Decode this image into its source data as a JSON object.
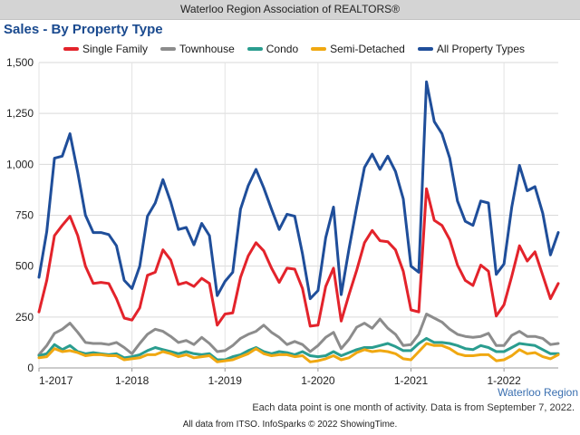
{
  "header": {
    "title": "Waterloo Region Association of REALTORS®"
  },
  "chart_data": {
    "type": "line",
    "title": "Sales - By Property Type",
    "xlabel": "",
    "ylabel": "",
    "region_label": "Waterloo Region",
    "x_tick_labels": [
      "1-2017",
      "1-2018",
      "1-2019",
      "1-2020",
      "1-2021",
      "1-2022"
    ],
    "y_ticks": [
      "0",
      "250",
      "500",
      "750",
      "1,000",
      "1,250",
      "1,500"
    ],
    "ylim": [
      0,
      1500
    ],
    "grid": true,
    "legend_position": "top",
    "period": {
      "start": "2017-01",
      "months": 68
    },
    "series": [
      {
        "name": "Single Family",
        "color": "#e3232b",
        "values": [
          275,
          430,
          650,
          700,
          745,
          650,
          500,
          415,
          420,
          415,
          340,
          245,
          235,
          295,
          455,
          470,
          580,
          530,
          410,
          420,
          400,
          440,
          415,
          210,
          265,
          270,
          445,
          550,
          615,
          575,
          490,
          420,
          490,
          485,
          390,
          205,
          210,
          400,
          490,
          230,
          360,
          480,
          615,
          675,
          625,
          620,
          580,
          475,
          285,
          275,
          880,
          725,
          700,
          630,
          505,
          430,
          405,
          505,
          475,
          255,
          310,
          450,
          600,
          525,
          570,
          455,
          340,
          415
        ]
      },
      {
        "name": "Townhouse",
        "color": "#8c8c8c",
        "values": [
          65,
          110,
          170,
          190,
          220,
          175,
          125,
          120,
          120,
          115,
          125,
          100,
          70,
          120,
          165,
          190,
          180,
          155,
          125,
          135,
          115,
          150,
          120,
          80,
          85,
          110,
          145,
          165,
          180,
          210,
          175,
          150,
          115,
          130,
          115,
          80,
          110,
          150,
          175,
          95,
          140,
          200,
          220,
          195,
          240,
          195,
          165,
          110,
          115,
          165,
          265,
          245,
          225,
          190,
          165,
          155,
          150,
          155,
          170,
          110,
          110,
          160,
          180,
          155,
          155,
          145,
          115,
          120
        ]
      },
      {
        "name": "Condo",
        "color": "#2a9d8f",
        "values": [
          60,
          70,
          115,
          90,
          110,
          80,
          70,
          75,
          70,
          65,
          70,
          50,
          55,
          65,
          85,
          100,
          90,
          80,
          70,
          80,
          70,
          65,
          70,
          40,
          40,
          55,
          65,
          85,
          100,
          80,
          70,
          80,
          75,
          65,
          80,
          60,
          55,
          60,
          80,
          60,
          75,
          90,
          100,
          100,
          110,
          120,
          105,
          85,
          85,
          120,
          145,
          125,
          125,
          120,
          110,
          95,
          90,
          110,
          100,
          80,
          80,
          100,
          120,
          115,
          110,
          90,
          70,
          70
        ]
      },
      {
        "name": "Semi-Detached",
        "color": "#f0a811",
        "values": [
          50,
          55,
          95,
          80,
          85,
          75,
          60,
          65,
          65,
          60,
          60,
          40,
          45,
          50,
          65,
          65,
          80,
          70,
          55,
          65,
          50,
          55,
          60,
          30,
          35,
          40,
          55,
          70,
          95,
          70,
          60,
          65,
          65,
          55,
          60,
          30,
          35,
          45,
          60,
          40,
          50,
          75,
          90,
          80,
          85,
          80,
          70,
          45,
          40,
          80,
          120,
          110,
          110,
          95,
          70,
          60,
          60,
          65,
          65,
          35,
          40,
          60,
          90,
          70,
          75,
          55,
          45,
          65
        ]
      },
      {
        "name": "All Property Types",
        "color": "#1f4e9a",
        "values": [
          445,
          670,
          1030,
          1040,
          1150,
          960,
          750,
          665,
          665,
          655,
          600,
          430,
          390,
          500,
          745,
          810,
          925,
          815,
          680,
          690,
          605,
          710,
          650,
          355,
          425,
          470,
          780,
          895,
          975,
          885,
          780,
          680,
          755,
          745,
          560,
          340,
          380,
          640,
          790,
          360,
          585,
          790,
          985,
          1050,
          975,
          1040,
          965,
          830,
          500,
          470,
          1405,
          1210,
          1150,
          1030,
          820,
          720,
          700,
          820,
          810,
          460,
          510,
          790,
          995,
          870,
          890,
          760,
          555,
          665
        ]
      }
    ]
  },
  "footnote": "Each data point is one month of activity. Data is from September 7, 2022.",
  "credit": "All data from ITSO. InfoSparks © 2022 ShowingTime."
}
